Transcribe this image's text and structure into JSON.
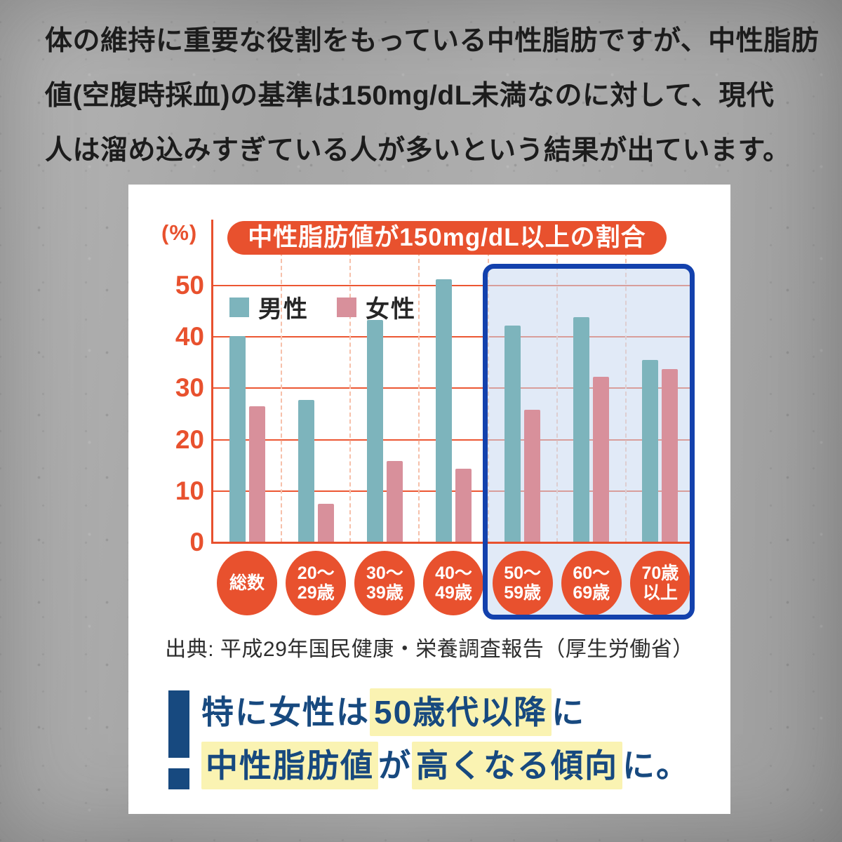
{
  "intro": {
    "lines": [
      "体の維持に重要な役割をもっている中性脂肪ですが、中性脂肪",
      "値(空腹時採血)の基準は150mg/dL未満なのに対して、現代",
      "人は溜め込みすぎている人が多いという結果が出ています。"
    ]
  },
  "chart_data": {
    "type": "bar",
    "title": "中性脂肪値が150mg/dL以上の割合",
    "unit_label": "(%)",
    "categories": [
      "総数",
      "20〜29歳",
      "30〜39歳",
      "40〜49歳",
      "50〜59歳",
      "60〜69歳",
      "70歳以上"
    ],
    "category_label_lines": [
      [
        "総数"
      ],
      [
        "20〜",
        "29歳"
      ],
      [
        "30〜",
        "39歳"
      ],
      [
        "40〜",
        "49歳"
      ],
      [
        "50〜",
        "59歳"
      ],
      [
        "60〜",
        "69歳"
      ],
      [
        "70歳",
        "以上"
      ]
    ],
    "series": [
      {
        "name": "男性",
        "color": "#7db4bc",
        "values": [
          40.2,
          27.7,
          43.3,
          51.2,
          42.2,
          43.9,
          35.5
        ]
      },
      {
        "name": "女性",
        "color": "#d8909b",
        "values": [
          26.5,
          7.5,
          15.8,
          14.3,
          25.8,
          32.2,
          33.8
        ]
      }
    ],
    "ylim": [
      0,
      60
    ],
    "yticks": [
      0,
      10,
      20,
      30,
      40,
      50
    ],
    "grid": {
      "horizontal": "solid-red",
      "vertical": "dashed-pink"
    },
    "legend_position": "top-left-inside",
    "highlight_box": {
      "categories": [
        "50〜59歳",
        "60〜69歳",
        "70歳以上"
      ],
      "border_color": "#1341ad",
      "fill_color": "rgba(201,216,240,0.55)"
    }
  },
  "source": "出典: 平成29年国民健康・栄養調査報告（厚生労働省）",
  "callout": {
    "mark": "exclamation",
    "line1": [
      {
        "text": "特に女性は",
        "highlight": false
      },
      {
        "text": "50歳代以降",
        "highlight": true
      },
      {
        "text": "に",
        "highlight": false
      }
    ],
    "line2": [
      {
        "text": "中性脂肪値",
        "highlight": true
      },
      {
        "text": "が",
        "highlight": false
      },
      {
        "text": "高くなる傾向",
        "highlight": true
      },
      {
        "text": "に。",
        "highlight": false
      }
    ]
  },
  "colors": {
    "accent_red": "#e8512e",
    "male_teal": "#7db4bc",
    "female_pink": "#d8909b",
    "navy": "#17497f",
    "highlight_yellow": "#faf3b2",
    "box_blue": "#1341ad",
    "card_bg": "#ffffff",
    "page_bg": "#a8a8a8"
  }
}
